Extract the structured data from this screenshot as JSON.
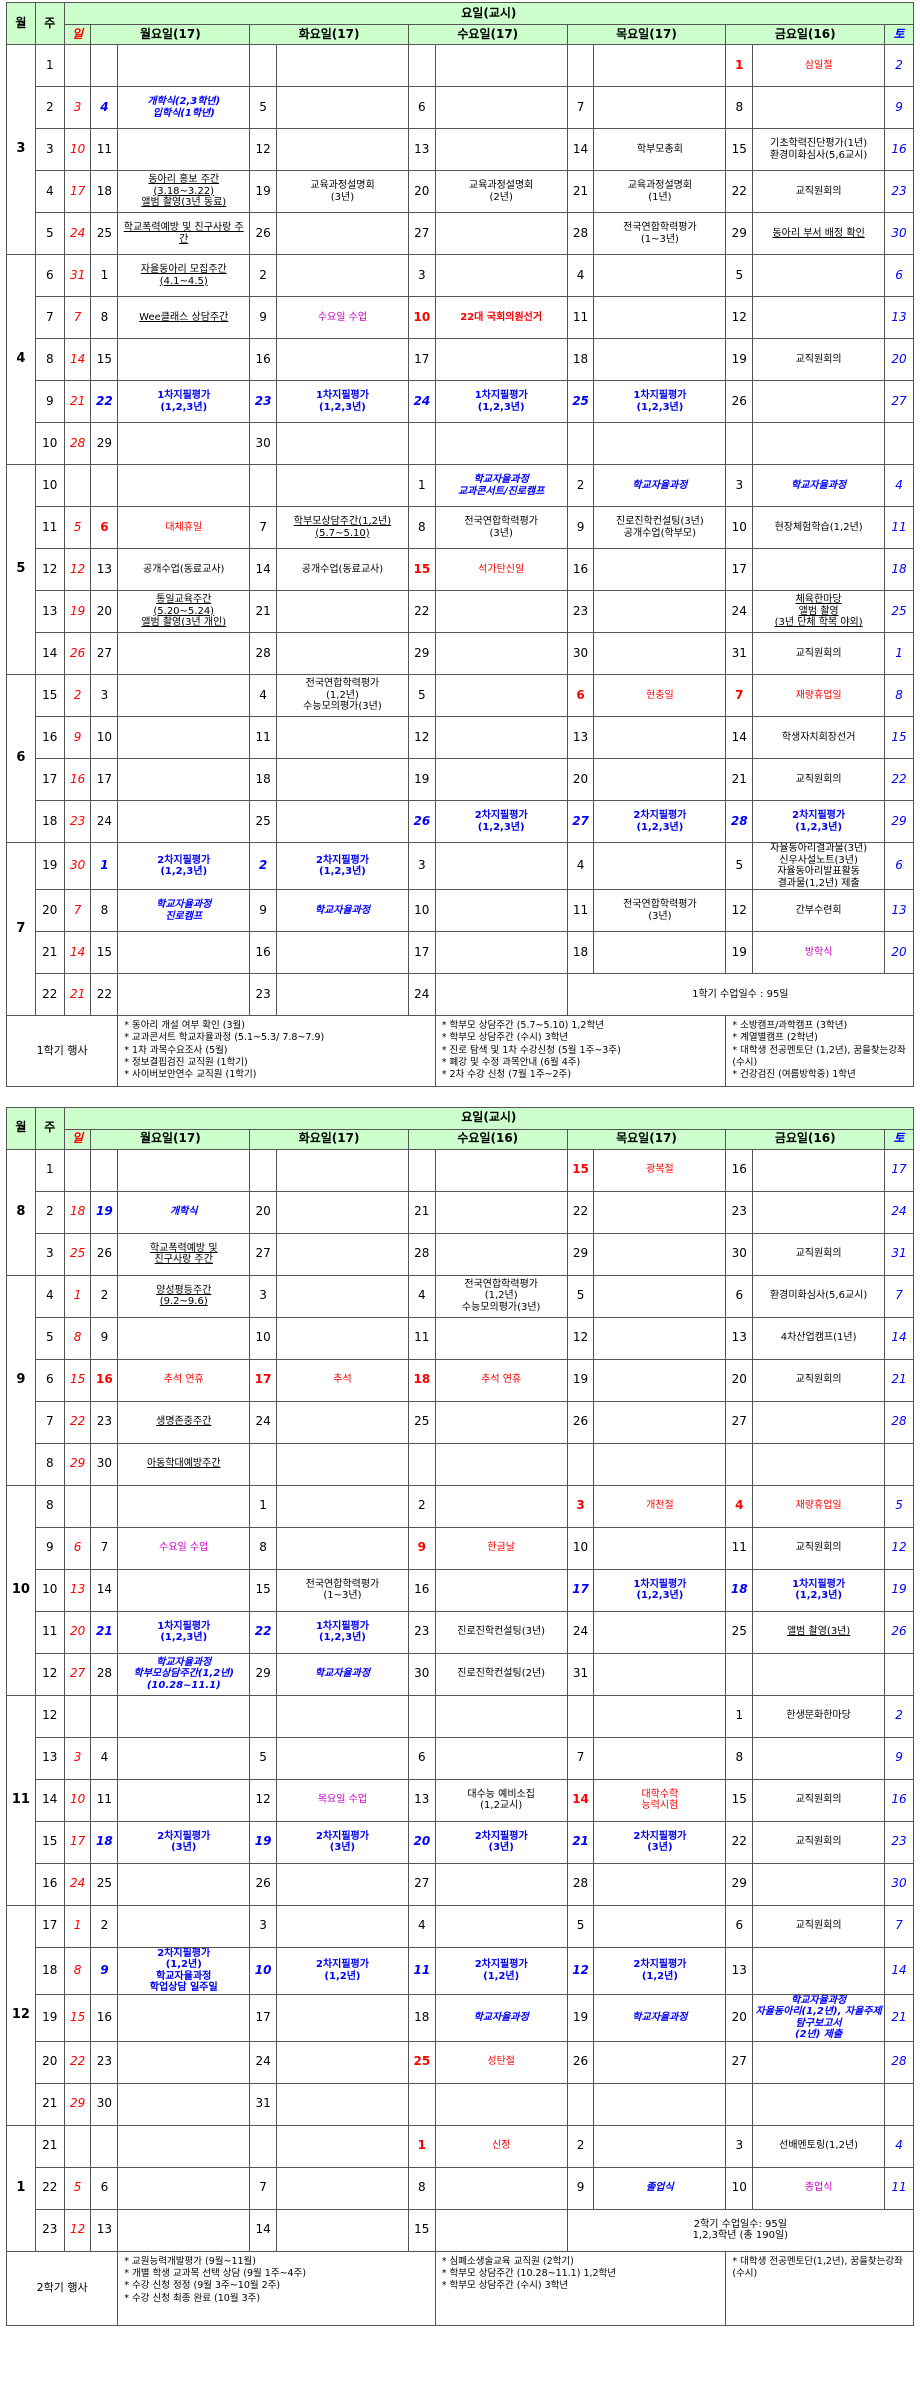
{
  "headers": {
    "month": "월",
    "week": "주",
    "day_header": "요일(교시)",
    "sun": "일",
    "sat": "토"
  },
  "sem1": {
    "mon": "월요일(17)",
    "tue": "화요일(17)",
    "wed": "수요일(17)",
    "thu": "목요일(17)",
    "fri": "금요일(16)",
    "rows": [
      {
        "m": "3",
        "w": "1",
        "sun": "",
        "mond": "",
        "mon": "",
        "tued": "",
        "tue": "",
        "wedd": "",
        "wed": "",
        "thud": "",
        "thu": "",
        "frid": "1",
        "fri": "삼일절",
        "sat": "2"
      },
      {
        "m": "",
        "w": "2",
        "sun": "3",
        "mond": "4",
        "mon": "개학식(2,3학년)\n입학식(1학년)",
        "tued": "5",
        "tue": "",
        "wedd": "6",
        "wed": "",
        "thud": "7",
        "thu": "",
        "frid": "8",
        "fri": "",
        "sat": "9"
      },
      {
        "m": "",
        "w": "3",
        "sun": "10",
        "mond": "11",
        "mon": "",
        "tued": "12",
        "tue": "",
        "wedd": "13",
        "wed": "",
        "thud": "14",
        "thu": "학부모총회",
        "frid": "15",
        "fri": "기초학력진단평가(1년)\n환경미화심사(5,6교시)",
        "sat": "16"
      },
      {
        "m": "",
        "w": "4",
        "sun": "17",
        "mond": "18",
        "mon": "동아리 홍보 주간\n(3.18~3.22)\n앨범 촬영(3년 동료)",
        "tued": "19",
        "tue": "교육과정설명회\n(3년)",
        "wedd": "20",
        "wed": "교육과정설명회\n(2년)",
        "thud": "21",
        "thu": "교육과정설명회\n(1년)",
        "frid": "22",
        "fri": "교직원회의",
        "sat": "23"
      },
      {
        "m": "",
        "w": "5",
        "sun": "24",
        "mond": "25",
        "mon": "학교폭력예방 및 친구사랑 주간",
        "tued": "26",
        "tue": "",
        "wedd": "27",
        "wed": "",
        "thud": "28",
        "thu": "전국연합학력평가\n(1~3년)",
        "frid": "29",
        "fri": "동아리 부서 배정 확인",
        "sat": "30"
      },
      {
        "m": "4",
        "w": "6",
        "sun": "31",
        "mond": "1",
        "mon": "자율동아리 모집주간\n(4.1~4.5)",
        "tued": "2",
        "tue": "",
        "wedd": "3",
        "wed": "",
        "thud": "4",
        "thu": "",
        "frid": "5",
        "fri": "",
        "sat": "6"
      },
      {
        "m": "",
        "w": "7",
        "sun": "7",
        "mond": "8",
        "mon": "Wee클래스 상담주간",
        "tued": "9",
        "tue": "수요일 수업",
        "wedd": "10",
        "wed": "22대 국회의원선거",
        "thud": "11",
        "thu": "",
        "frid": "12",
        "fri": "",
        "sat": "13"
      },
      {
        "m": "",
        "w": "8",
        "sun": "14",
        "mond": "15",
        "mon": "",
        "tued": "16",
        "tue": "",
        "wedd": "17",
        "wed": "",
        "thud": "18",
        "thu": "",
        "frid": "19",
        "fri": "교직원회의",
        "sat": "20"
      },
      {
        "m": "",
        "w": "9",
        "sun": "21",
        "mond": "22",
        "mon": "1차지필평가\n(1,2,3년)",
        "tued": "23",
        "tue": "1차지필평가\n(1,2,3년)",
        "wedd": "24",
        "wed": "1차지필평가\n(1,2,3년)",
        "thud": "25",
        "thu": "1차지필평가\n(1,2,3년)",
        "frid": "26",
        "fri": "",
        "sat": "27"
      },
      {
        "m": "",
        "w": "10",
        "sun": "28",
        "mond": "29",
        "mon": "",
        "tued": "30",
        "tue": "",
        "wedd": "",
        "wed": "",
        "thud": "",
        "thu": "",
        "frid": "",
        "fri": "",
        "sat": ""
      },
      {
        "m": "5",
        "w": "10",
        "sun": "",
        "mond": "",
        "mon": "",
        "tued": "",
        "tue": "",
        "wedd": "1",
        "wed": "학교자율과정\n교과콘서트/진로캠프",
        "thud": "2",
        "thu": "학교자율과정",
        "frid": "3",
        "fri": "학교자율과정",
        "sat": "4"
      },
      {
        "m": "",
        "w": "11",
        "sun": "5",
        "mond": "6",
        "mon": "대체휴일",
        "tued": "7",
        "tue": "학부모상담주간(1,2년)\n(5.7~5.10)",
        "wedd": "8",
        "wed": "전국연합학력평가\n(3년)",
        "thud": "9",
        "thu": "진로진학컨설팅(3년)\n공개수업(학부모)",
        "frid": "10",
        "fri": "현장체험학습(1,2년)",
        "sat": "11"
      },
      {
        "m": "",
        "w": "12",
        "sun": "12",
        "mond": "13",
        "mon": "공개수업(동료교사)",
        "tued": "14",
        "tue": "공개수업(동료교사)",
        "wedd": "15",
        "wed": "석가탄신일",
        "thud": "16",
        "thu": "",
        "frid": "17",
        "fri": "",
        "sat": "18"
      },
      {
        "m": "",
        "w": "13",
        "sun": "19",
        "mond": "20",
        "mon": "통일교육주간\n(5.20~5.24)\n앨범 촬영(3년 개인)",
        "tued": "21",
        "tue": "",
        "wedd": "22",
        "wed": "",
        "thud": "23",
        "thu": "",
        "frid": "24",
        "fri": "체육한마당\n앨범 촬영\n(3년 단체 학복 야외)",
        "sat": "25"
      },
      {
        "m": "",
        "w": "14",
        "sun": "26",
        "mond": "27",
        "mon": "",
        "tued": "28",
        "tue": "",
        "wedd": "29",
        "wed": "",
        "thud": "30",
        "thu": "",
        "frid": "31",
        "fri": "교직원회의",
        "sat": "1"
      },
      {
        "m": "6",
        "w": "15",
        "sun": "2",
        "mond": "3",
        "mon": "",
        "tued": "4",
        "tue": "전국연합학력평가\n(1,2년)\n수능모의평가(3년)",
        "wedd": "5",
        "wed": "",
        "thud": "6",
        "thu": "현충일",
        "frid": "7",
        "fri": "재량휴업일",
        "sat": "8"
      },
      {
        "m": "",
        "w": "16",
        "sun": "9",
        "mond": "10",
        "mon": "",
        "tued": "11",
        "tue": "",
        "wedd": "12",
        "wed": "",
        "thud": "13",
        "thu": "",
        "frid": "14",
        "fri": "학생자치회장선거",
        "sat": "15"
      },
      {
        "m": "",
        "w": "17",
        "sun": "16",
        "mond": "17",
        "mon": "",
        "tued": "18",
        "tue": "",
        "wedd": "19",
        "wed": "",
        "thud": "20",
        "thu": "",
        "frid": "21",
        "fri": "교직원회의",
        "sat": "22"
      },
      {
        "m": "",
        "w": "18",
        "sun": "23",
        "mond": "24",
        "mon": "",
        "tued": "25",
        "tue": "",
        "wedd": "26",
        "wed": "2차지필평가\n(1,2,3년)",
        "thud": "27",
        "thu": "2차지필평가\n(1,2,3년)",
        "frid": "28",
        "fri": "2차지필평가\n(1,2,3년)",
        "sat": "29"
      },
      {
        "m": "7",
        "w": "19",
        "sun": "30",
        "mond": "1",
        "mon": "2차지필평가\n(1,2,3년)",
        "tued": "2",
        "tue": "2차지필평가\n(1,2,3년)",
        "wedd": "3",
        "wed": "",
        "thud": "4",
        "thu": "",
        "frid": "5",
        "fri": "자율동아리결과물(3년)\n신우사설노트(3년)\n자율동아리발표활동\n결과물(1,2년) 제출",
        "sat": "6"
      },
      {
        "m": "",
        "w": "20",
        "sun": "7",
        "mond": "8",
        "mon": "학교자율과정\n진로캠프",
        "tued": "9",
        "tue": "학교자율과정",
        "wedd": "10",
        "wed": "",
        "thud": "11",
        "thu": "전국연합학력평가\n(3년)",
        "frid": "12",
        "fri": "간부수련회",
        "sat": "13"
      },
      {
        "m": "",
        "w": "21",
        "sun": "14",
        "mond": "15",
        "mon": "",
        "tued": "16",
        "tue": "",
        "wedd": "17",
        "wed": "",
        "thud": "18",
        "thu": "",
        "frid": "19",
        "fri": "방학식",
        "sat": "20"
      },
      {
        "m": "",
        "w": "22",
        "sun": "21",
        "mond": "22",
        "mon": "",
        "tued": "23",
        "tue": "",
        "wedd": "24",
        "wed": "",
        "thud": "",
        "thu": "1학기 수업일수 : 95일",
        "frid": "",
        "fri": "",
        "sat": ""
      }
    ],
    "events_label": "1학기 행사",
    "events_col1": [
      "* 동아리 개설 여부 확인 (3월)",
      "* 교과콘서트 학교자율과정 (5.1~5.3/ 7.8~7.9)",
      "* 1차 과목수요조사 (5월)",
      "* 정보결핍검진 교직원 (1학기)",
      "* 사이버보안연수 교직원 (1학기)"
    ],
    "events_col2": [
      "* 학부모 상담주간 (5.7~5.10) 1,2학년",
      "* 학부모 상담주간 (수시) 3학년",
      "* 진로 탐색 및 1차 수강신청 (5월 1주~3주)",
      "* 폐강 및 수정 과목안내 (6월 4주)",
      "* 2차 수강 신청 (7월 1주~2주)"
    ],
    "events_col3": [
      "* 소방캠프/과학캠프 (3학년)",
      "* 계열별캠프 (2학년)",
      "* 대학생 전공멘토단 (1,2년), 꿈을찾는강좌(수시)",
      "* 건강검진 (여름방학중) 1학년"
    ]
  },
  "sem2": {
    "mon": "월요일(17)",
    "tue": "화요일(17)",
    "wed": "수요일(16)",
    "thu": "목요일(17)",
    "fri": "금요일(16)",
    "rows": [
      {
        "m": "8",
        "w": "1",
        "sun": "",
        "mond": "",
        "mon": "",
        "tued": "",
        "tue": "",
        "wedd": "",
        "wed": "",
        "thud": "15",
        "thu": "광복절",
        "frid": "16",
        "fri": "",
        "sat": "17"
      },
      {
        "m": "",
        "w": "2",
        "sun": "18",
        "mond": "19",
        "mon": "개학식",
        "tued": "20",
        "tue": "",
        "wedd": "21",
        "wed": "",
        "thud": "22",
        "thu": "",
        "frid": "23",
        "fri": "",
        "sat": "24"
      },
      {
        "m": "",
        "w": "3",
        "sun": "25",
        "mond": "26",
        "mon": "학교폭력예방 및\n친구사랑 주간",
        "tued": "27",
        "tue": "",
        "wedd": "28",
        "wed": "",
        "thud": "29",
        "thu": "",
        "frid": "30",
        "fri": "교직원회의",
        "sat": "31"
      },
      {
        "m": "9",
        "w": "4",
        "sun": "1",
        "mond": "2",
        "mon": "양성평등주간\n(9.2~9.6)",
        "tued": "3",
        "tue": "",
        "wedd": "4",
        "wed": "전국연합학력평가\n(1,2년)\n수능모의평가(3년)",
        "thud": "5",
        "thu": "",
        "frid": "6",
        "fri": "환경미화심사(5,6교시)",
        "sat": "7"
      },
      {
        "m": "",
        "w": "5",
        "sun": "8",
        "mond": "9",
        "mon": "",
        "tued": "10",
        "tue": "",
        "wedd": "11",
        "wed": "",
        "thud": "12",
        "thu": "",
        "frid": "13",
        "fri": "4차산업캠프(1년)",
        "sat": "14"
      },
      {
        "m": "",
        "w": "6",
        "sun": "15",
        "mond": "16",
        "mon": "추석 연휴",
        "tued": "17",
        "tue": "추석",
        "wedd": "18",
        "wed": "추석 연휴",
        "thud": "19",
        "thu": "",
        "frid": "20",
        "fri": "교직원회의",
        "sat": "21"
      },
      {
        "m": "",
        "w": "7",
        "sun": "22",
        "mond": "23",
        "mon": "생명존중주간",
        "tued": "24",
        "tue": "",
        "wedd": "25",
        "wed": "",
        "thud": "26",
        "thu": "",
        "frid": "27",
        "fri": "",
        "sat": "28"
      },
      {
        "m": "",
        "w": "8",
        "sun": "29",
        "mond": "30",
        "mon": "아동학대예방주간",
        "tued": "",
        "tue": "",
        "wedd": "",
        "wed": "",
        "thud": "",
        "thu": "",
        "frid": "",
        "fri": "",
        "sat": ""
      },
      {
        "m": "10",
        "w": "8",
        "sun": "",
        "mond": "",
        "mon": "",
        "tued": "1",
        "tue": "",
        "wedd": "2",
        "wed": "",
        "thud": "3",
        "thu": "개천절",
        "frid": "4",
        "fri": "재량휴업일",
        "sat": "5"
      },
      {
        "m": "",
        "w": "9",
        "sun": "6",
        "mond": "7",
        "mon": "수요일 수업",
        "tued": "8",
        "tue": "",
        "wedd": "9",
        "wed": "한글날",
        "thud": "10",
        "thu": "",
        "frid": "11",
        "fri": "교직원회의",
        "sat": "12"
      },
      {
        "m": "",
        "w": "10",
        "sun": "13",
        "mond": "14",
        "mon": "",
        "tued": "15",
        "tue": "전국연합학력평가\n(1~3년)",
        "wedd": "16",
        "wed": "",
        "thud": "17",
        "thu": "1차지필평가\n(1,2,3년)",
        "frid": "18",
        "fri": "1차지필평가\n(1,2,3년)",
        "sat": "19"
      },
      {
        "m": "",
        "w": "11",
        "sun": "20",
        "mond": "21",
        "mon": "1차지필평가\n(1,2,3년)",
        "tued": "22",
        "tue": "1차지필평가\n(1,2,3년)",
        "wedd": "23",
        "wed": "진로진학컨설팅(3년)",
        "thud": "24",
        "thu": "",
        "frid": "25",
        "fri": "앨범 촬영(3년)",
        "sat": "26"
      },
      {
        "m": "",
        "w": "12",
        "sun": "27",
        "mond": "28",
        "mon": "학교자율과정\n학부모상담주간(1,2년)\n(10.28~11.1)",
        "tued": "29",
        "tue": "학교자율과정",
        "wedd": "30",
        "wed": "진로진학컨설팅(2년)",
        "thud": "31",
        "thu": "",
        "frid": "",
        "fri": "",
        "sat": ""
      },
      {
        "m": "11",
        "w": "12",
        "sun": "",
        "mond": "",
        "mon": "",
        "tued": "",
        "tue": "",
        "wedd": "",
        "wed": "",
        "thud": "",
        "thu": "",
        "frid": "1",
        "fri": "한생문화한마당",
        "sat": "2"
      },
      {
        "m": "",
        "w": "13",
        "sun": "3",
        "mond": "4",
        "mon": "",
        "tued": "5",
        "tue": "",
        "wedd": "6",
        "wed": "",
        "thud": "7",
        "thu": "",
        "frid": "8",
        "fri": "",
        "sat": "9"
      },
      {
        "m": "",
        "w": "14",
        "sun": "10",
        "mond": "11",
        "mon": "",
        "tued": "12",
        "tue": "목요일 수업",
        "wedd": "13",
        "wed": "대수능 예비소집\n(1,2교시)",
        "thud": "14",
        "thu": "대학수학\n능력시험",
        "frid": "15",
        "fri": "교직원회의",
        "sat": "16"
      },
      {
        "m": "",
        "w": "15",
        "sun": "17",
        "mond": "18",
        "mon": "2차지필평가\n(3년)",
        "tued": "19",
        "tue": "2차지필평가\n(3년)",
        "wedd": "20",
        "wed": "2차지필평가\n(3년)",
        "thud": "21",
        "thu": "2차지필평가\n(3년)",
        "frid": "22",
        "fri": "교직원회의",
        "sat": "23"
      },
      {
        "m": "",
        "w": "16",
        "sun": "24",
        "mond": "25",
        "mon": "",
        "tued": "26",
        "tue": "",
        "wedd": "27",
        "wed": "",
        "thud": "28",
        "thu": "",
        "frid": "29",
        "fri": "",
        "sat": "30"
      },
      {
        "m": "12",
        "w": "17",
        "sun": "1",
        "mond": "2",
        "mon": "",
        "tued": "3",
        "tue": "",
        "wedd": "4",
        "wed": "",
        "thud": "5",
        "thu": "",
        "frid": "6",
        "fri": "교직원회의",
        "sat": "7"
      },
      {
        "m": "",
        "w": "18",
        "sun": "8",
        "mond": "9",
        "mon": "2차지필평가\n(1,2년)\n학교자율과정\n학업상담 일주일",
        "tued": "10",
        "tue": "2차지필평가\n(1,2년)",
        "wedd": "11",
        "wed": "2차지필평가\n(1,2년)",
        "thud": "12",
        "thu": "2차지필평가\n(1,2년)",
        "frid": "13",
        "fri": "",
        "sat": "14"
      },
      {
        "m": "",
        "w": "19",
        "sun": "15",
        "mond": "16",
        "mon": "",
        "tued": "17",
        "tue": "",
        "wedd": "18",
        "wed": "학교자율과정",
        "thud": "19",
        "thu": "학교자율과정",
        "frid": "20",
        "fri": "학교자율과정\n자율동아리(1,2년), 자율주제탐구보고서\n(2년) 제출",
        "sat": "21"
      },
      {
        "m": "",
        "w": "20",
        "sun": "22",
        "mond": "23",
        "mon": "",
        "tued": "24",
        "tue": "",
        "wedd": "25",
        "wed": "성탄절",
        "thud": "26",
        "thu": "",
        "frid": "27",
        "fri": "",
        "sat": "28"
      },
      {
        "m": "",
        "w": "21",
        "sun": "29",
        "mond": "30",
        "mon": "",
        "tued": "31",
        "tue": "",
        "wedd": "",
        "wed": "",
        "thud": "",
        "thu": "",
        "frid": "",
        "fri": "",
        "sat": ""
      },
      {
        "m": "1",
        "w": "21",
        "sun": "",
        "mond": "",
        "mon": "",
        "tued": "",
        "tue": "",
        "wedd": "1",
        "wed": "신정",
        "thud": "2",
        "thu": "",
        "frid": "3",
        "fri": "선배멘토링(1,2년)",
        "sat": "4"
      },
      {
        "m": "",
        "w": "22",
        "sun": "5",
        "mond": "6",
        "mon": "",
        "tued": "7",
        "tue": "",
        "wedd": "8",
        "wed": "",
        "thud": "9",
        "thu": "졸업식",
        "frid": "10",
        "fri": "종업식",
        "sat": "11"
      },
      {
        "m": "",
        "w": "23",
        "sun": "12",
        "mond": "13",
        "mon": "",
        "tued": "14",
        "tue": "",
        "wedd": "15",
        "wed": "",
        "thud": "",
        "thu": "2학기 수업일수: 95일\n1,2,3학년 (총 190일)",
        "frid": "",
        "fri": "",
        "sat": ""
      }
    ],
    "events_label": "2학기 행사",
    "events_col1": [
      "* 교원능력개발평가 (9월~11월)",
      "* 개별 학생 교과목 선택 상담 (9월 1주~4주)",
      "* 수강 신청 정정 (9월 3주~10월 2주)",
      "* 수강 신청 최종 완료 (10월 3주)"
    ],
    "events_col2": [
      "* 심폐소생술교육 교직원 (2학기)",
      "* 학부모 상담주간 (10.28~11.1) 1,2학년",
      "* 학부모 상담주간 (수시) 3학년"
    ],
    "events_col3": [
      "* 대학생 전공멘토단(1,2년), 꿈을찾는강좌(수시)"
    ]
  }
}
